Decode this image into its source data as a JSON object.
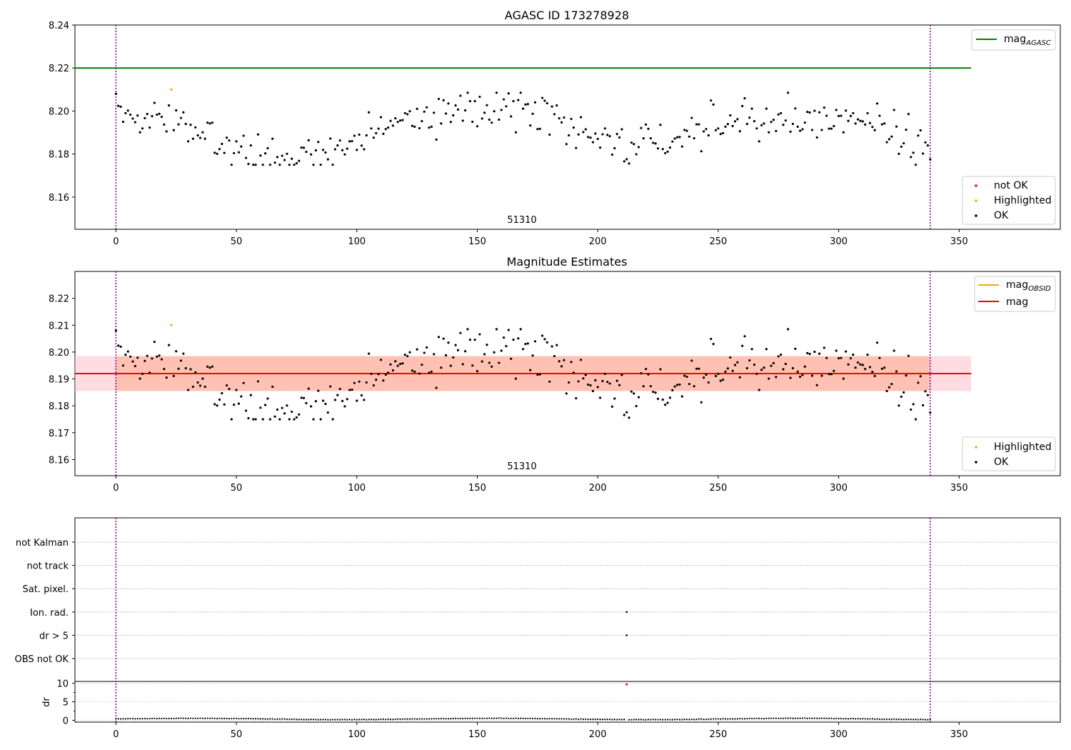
{
  "chart_data": [
    {
      "type": "scatter",
      "title": "AGASC ID 173278928",
      "xlim": [
        -17,
        392
      ],
      "ylim": [
        8.145,
        8.24
      ],
      "x_ticks": [
        0,
        50,
        100,
        150,
        200,
        250,
        300,
        350
      ],
      "y_ticks": [
        8.16,
        8.18,
        8.2,
        8.22,
        8.24
      ],
      "y_tick_labels": [
        "8.16",
        "8.18",
        "8.20",
        "8.22",
        "8.24"
      ],
      "vlines": [
        0,
        338
      ],
      "reference_line": {
        "name": "mag_AGASC",
        "value": 8.22,
        "x_range": [
          -17,
          355
        ],
        "color": "#008000"
      },
      "annotation": {
        "text": "51310",
        "x": 168,
        "y": 8.148
      },
      "highlighted": [
        {
          "x": 23,
          "y": 8.21
        }
      ],
      "not_ok": [],
      "legend_top": {
        "label": "mag",
        "subscript": "AGASC",
        "position": "top-right"
      },
      "legend_bottom": {
        "position": "lower-right",
        "entries": [
          "not OK",
          "Highlighted",
          "OK"
        ]
      },
      "colors": {
        "ok": "#000000",
        "highlighted": "#ffa500",
        "not_ok": "#ff0000",
        "vline": "#800080"
      }
    },
    {
      "type": "scatter",
      "title": "Magnitude Estimates",
      "xlim": [
        -17,
        392
      ],
      "ylim": [
        8.154,
        8.23
      ],
      "x_ticks": [
        0,
        50,
        100,
        150,
        200,
        250,
        300,
        350
      ],
      "y_ticks": [
        8.16,
        8.17,
        8.18,
        8.19,
        8.2,
        8.21,
        8.22
      ],
      "y_tick_labels": [
        "8.16",
        "8.17",
        "8.18",
        "8.19",
        "8.20",
        "8.21",
        "8.22"
      ],
      "vlines": [
        0,
        338
      ],
      "mag_line": {
        "value": 8.192,
        "x_range": [
          -17,
          355
        ],
        "color": "#ff0000"
      },
      "mag_band": {
        "low": 8.1855,
        "high": 8.1985,
        "x_range": [
          -17,
          355
        ]
      },
      "mag_obsid_band": {
        "low": 8.1855,
        "high": 8.1985,
        "x_range": [
          0,
          338
        ]
      },
      "annotation": {
        "text": "51310",
        "x": 168,
        "y": 8.1565
      },
      "highlighted": [
        {
          "x": 23,
          "y": 8.21
        }
      ],
      "legend_top": {
        "entries": [
          {
            "label": "mag",
            "subscript": "OBSID",
            "color": "#ffa500"
          },
          {
            "label": "mag",
            "subscript": "",
            "color": "#ff0000"
          }
        ],
        "position": "top-right"
      },
      "legend_bottom": {
        "position": "lower-right",
        "entries": [
          "Highlighted",
          "OK"
        ]
      }
    },
    {
      "type": "scatter",
      "title": "",
      "xlim": [
        -17,
        392
      ],
      "x_ticks": [
        0,
        50,
        100,
        150,
        200,
        250,
        300,
        350
      ],
      "flag_categories": [
        "not Kalman",
        "not track",
        "Sat. pixel.",
        "Ion. rad.",
        "dr > 5",
        "OBS not OK"
      ],
      "flag_points": [
        {
          "flag": "Ion. rad.",
          "x": 212
        },
        {
          "flag": "dr > 5",
          "x": 212
        }
      ],
      "dr": {
        "ylabel": "dr",
        "ylim": [
          -0.5,
          10.5
        ],
        "y_ticks": [
          0,
          5,
          10
        ],
        "y_tick_labels": [
          "0",
          "5",
          "10"
        ],
        "outlier": {
          "x": 212,
          "y": 9.7
        },
        "typical_range": [
          0.1,
          0.8
        ]
      },
      "vlines": [
        0,
        338
      ]
    }
  ],
  "scatter_ok": {
    "count": 339,
    "seed": 173278928
  }
}
